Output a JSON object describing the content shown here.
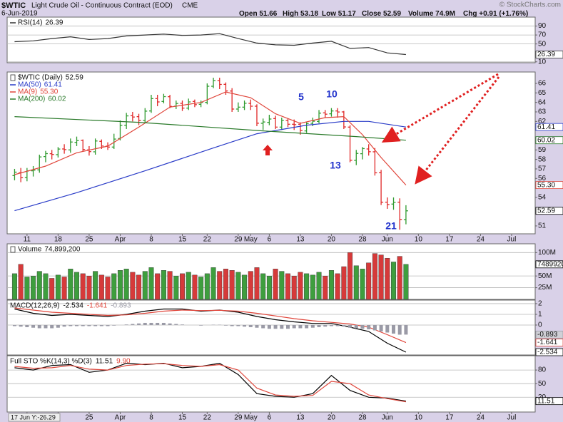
{
  "header": {
    "symbol": "$WTIC",
    "name": "Light Crude Oil - Continuous Contract (EOD)",
    "exchange": "CME",
    "date": "6-Jun-2019",
    "quote": [
      {
        "label": "Open",
        "value": "51.66"
      },
      {
        "label": "High",
        "value": "53.18"
      },
      {
        "label": "Low",
        "value": "51.17"
      },
      {
        "label": "Close",
        "value": "52.59"
      },
      {
        "label": "Volume",
        "value": "74.9M"
      },
      {
        "label": "Chg",
        "value": "+0.91 (+1.76%)"
      }
    ],
    "credit": "© StockCharts.com"
  },
  "cursor_info": "17 Jun Y:-26.29",
  "chart_data": {
    "type": "stock",
    "xlim": [
      -1.2,
      83.8
    ],
    "xticks": [
      {
        "value": 2,
        "label": "11"
      },
      {
        "value": 7,
        "label": "18"
      },
      {
        "value": 12,
        "label": "25"
      },
      {
        "value": 17,
        "label": "Apr"
      },
      {
        "value": 22,
        "label": "8"
      },
      {
        "value": 27,
        "label": "15"
      },
      {
        "value": 31,
        "label": "22"
      },
      {
        "value": 36,
        "label": "29"
      },
      {
        "value": 38,
        "label": "May"
      },
      {
        "value": 41,
        "label": "6"
      },
      {
        "value": 46,
        "label": "13"
      },
      {
        "value": 51,
        "label": "20"
      },
      {
        "value": 56,
        "label": "28"
      },
      {
        "value": 60,
        "label": "Jun"
      },
      {
        "value": 65,
        "label": "10"
      },
      {
        "value": 70,
        "label": "17"
      },
      {
        "value": 75,
        "label": "24"
      },
      {
        "value": 80,
        "label": "Jul"
      }
    ],
    "panels": [
      {
        "type": "line",
        "ylim": [
          8,
          110
        ],
        "yticks": [
          90,
          70,
          50,
          10
        ],
        "grid": true,
        "series": [
          {
            "name": "RSI(14)",
            "color": "#333333",
            "x": [
              0,
              3,
              6,
              9,
              12,
              15,
              18,
              21,
              24,
              27,
              30,
              33,
              36,
              39,
              42,
              45,
              48,
              51,
              54,
              57,
              60,
              63
            ],
            "values": [
              55,
              57,
              62,
              66,
              60,
              62,
              68,
              70,
              72,
              69,
              70,
              73,
              62,
              52,
              48,
              47,
              52,
              56,
              40,
              42,
              30,
              26.39
            ],
            "last": 26.39
          }
        ]
      },
      {
        "type": "ohlc",
        "ylim": [
          50.17,
          67.2
        ],
        "yticks": [
          51,
          54,
          56,
          57,
          58,
          59,
          62,
          63,
          64,
          65,
          66
        ],
        "grid": false,
        "annotations": [
          "5",
          "10",
          "13",
          "21"
        ],
        "series": [
          {
            "name": "$WTIC (Daily)",
            "type": "ohlc",
            "color_up": "#2f9a2f",
            "color_down": "#e02828",
            "open": [
              56.3,
              56.6,
              56.1,
              56.8,
              56.9,
              58.3,
              58.6,
              58.5,
              59.1,
              59.0,
              59.8,
              60.0,
              59.0,
              58.8,
              59.9,
              59.4,
              59.3,
              60.2,
              61.6,
              62.6,
              62.5,
              62.1,
              63.1,
              64.4,
              64.1,
              64.6,
              63.6,
              63.9,
              63.4,
              64.1,
              63.8,
              64.0,
              65.7,
              66.3,
              65.9,
              65.2,
              63.3,
              63.5,
              63.9,
              63.6,
              61.8,
              61.9,
              62.3,
              61.4,
              62.1,
              61.7,
              61.7,
              61.0,
              61.8,
              62.0,
              62.9,
              62.8,
              63.1,
              63.0,
              61.4,
              57.9,
              58.6,
              59.1,
              58.8,
              56.6,
              53.5,
              53.3,
              53.5,
              51.66
            ],
            "high": [
              57.0,
              57.1,
              57.1,
              57.3,
              58.5,
              58.9,
              59.0,
              59.3,
              59.6,
              60.2,
              60.4,
              60.1,
              59.4,
              60.2,
              60.1,
              59.8,
              60.7,
              62.1,
              62.9,
              63.0,
              62.8,
              63.4,
              64.8,
              64.8,
              64.9,
              64.8,
              64.2,
              64.2,
              64.4,
              64.3,
              64.2,
              66.0,
              66.6,
              66.6,
              66.1,
              65.5,
              64.0,
              64.2,
              64.3,
              63.8,
              62.3,
              62.7,
              62.6,
              62.4,
              62.3,
              62.2,
              61.9,
              61.9,
              62.4,
              63.2,
              63.2,
              63.4,
              63.4,
              63.1,
              61.6,
              59.0,
              59.3,
              59.6,
              59.2,
              56.9,
              54.0,
              54.0,
              53.9,
              53.18
            ],
            "low": [
              55.8,
              55.6,
              55.7,
              56.2,
              56.6,
              57.7,
              58.0,
              58.2,
              58.6,
              58.7,
              59.4,
              58.8,
              58.4,
              58.5,
              59.1,
              59.0,
              59.1,
              60.0,
              61.2,
              62.0,
              61.6,
              61.9,
              62.9,
              63.6,
              63.9,
              63.4,
              63.3,
              63.1,
              63.2,
              63.5,
              63.5,
              63.8,
              65.5,
              65.4,
              64.8,
              63.0,
              63.0,
              63.2,
              63.2,
              61.5,
              61.1,
              61.6,
              61.2,
              61.1,
              61.4,
              61.1,
              60.6,
              60.8,
              61.5,
              61.8,
              62.4,
              62.5,
              62.4,
              61.2,
              57.7,
              57.4,
              58.0,
              58.4,
              56.3,
              53.2,
              52.8,
              52.7,
              50.6,
              51.17
            ],
            "close": [
              56.66,
              56.07,
              56.79,
              56.87,
              58.26,
              58.61,
              58.52,
              59.09,
              59.03,
              59.83,
              59.98,
              59.04,
              58.82,
              59.94,
              59.41,
              59.3,
              60.14,
              61.59,
              62.58,
              62.46,
              62.1,
              63.08,
              64.4,
              64.05,
              64.61,
              63.58,
              63.89,
              63.4,
              64.05,
              63.76,
              64.0,
              65.7,
              66.3,
              65.89,
              65.21,
              63.3,
              63.5,
              63.91,
              63.6,
              61.81,
              61.94,
              62.25,
              61.4,
              62.12,
              61.7,
              61.66,
              61.04,
              61.78,
              62.02,
              62.87,
              62.76,
              63.1,
              62.99,
              61.42,
              57.91,
              58.63,
              59.14,
              58.81,
              56.59,
              53.5,
              53.25,
              53.48,
              51.68,
              52.59
            ],
            "last": 52.59
          },
          {
            "name": "MA(50)",
            "type": "line",
            "color": "#2a3cc8",
            "x": [
              0,
              10,
              21,
              32,
              39,
              47,
              53,
              57,
              63
            ],
            "values": [
              52.6,
              54.5,
              56.8,
              59.2,
              60.7,
              61.6,
              62.0,
              62.0,
              61.41
            ],
            "last": 61.41
          },
          {
            "name": "MA(9)",
            "type": "line",
            "color": "#e0453a",
            "x": [
              0,
              5,
              10,
              15,
              20,
              25,
              30,
              34,
              38,
              42,
              46,
              50,
              53,
              56,
              59,
              63
            ],
            "values": [
              56.4,
              57.3,
              58.7,
              59.4,
              61.4,
              63.5,
              64.0,
              65.1,
              64.5,
              62.8,
              61.8,
              62.4,
              62.5,
              60.6,
              58.2,
              55.3
            ],
            "last": {
              "value": 55.3,
              "label": "55.30"
            }
          },
          {
            "name": "MA(200)",
            "type": "line",
            "color": "#2a7a2a",
            "x": [
              0,
              20,
              40,
              55,
              63
            ],
            "values": [
              62.5,
              61.9,
              61.0,
              60.4,
              60.02
            ],
            "last": 60.02
          }
        ]
      },
      {
        "type": "bar",
        "ylim": [
          0,
          118750000
        ],
        "yticks": [
          {
            "value": 100000000,
            "label": "100M"
          },
          {
            "value": 50000000,
            "label": "50M"
          },
          {
            "value": 25000000,
            "label": "25M"
          }
        ],
        "grid": true,
        "series": [
          {
            "name": "Volume",
            "color_up": "#3e9e3e",
            "color_down": "#d63a3a",
            "values": [
              55000000,
              75000000,
              48000000,
              50000000,
              60000000,
              55000000,
              45000000,
              52000000,
              48000000,
              65000000,
              58000000,
              55000000,
              50000000,
              60000000,
              52000000,
              48000000,
              55000000,
              62000000,
              65000000,
              58000000,
              52000000,
              60000000,
              68000000,
              55000000,
              62000000,
              60000000,
              50000000,
              55000000,
              58000000,
              52000000,
              48000000,
              55000000,
              68000000,
              60000000,
              65000000,
              62000000,
              58000000,
              52000000,
              60000000,
              68000000,
              55000000,
              50000000,
              65000000,
              60000000,
              55000000,
              50000000,
              58000000,
              55000000,
              52000000,
              58000000,
              50000000,
              62000000,
              55000000,
              70000000,
              100000000,
              72000000,
              65000000,
              78000000,
              98000000,
              95000000,
              88000000,
              80000000,
              92000000,
              74899200
            ],
            "last": {
              "value": 74899200,
              "label": "74,899,200"
            }
          }
        ]
      },
      {
        "type": "line",
        "label": "MACD(12,26,9)",
        "ylim": [
          -2.8,
          2.33
        ],
        "yticks": [
          2,
          1,
          0
        ],
        "grid": true,
        "series": [
          {
            "type": "line",
            "color": "#000000",
            "x": [
              0,
              3,
              6,
              9,
              12,
              15,
              18,
              21,
              24,
              27,
              30,
              33,
              36,
              39,
              42,
              45,
              48,
              51,
              54,
              57,
              60,
              63
            ],
            "values": [
              1.5,
              1.1,
              0.9,
              1.0,
              0.9,
              0.8,
              1.0,
              1.3,
              1.5,
              1.5,
              1.3,
              1.4,
              1.2,
              0.8,
              0.5,
              0.3,
              0.15,
              0.15,
              -0.2,
              -0.6,
              -1.7,
              -2.534
            ],
            "last": -2.534
          },
          {
            "type": "line",
            "color": "#e0453a",
            "x": [
              0,
              3,
              6,
              9,
              12,
              15,
              18,
              21,
              24,
              27,
              30,
              33,
              36,
              39,
              42,
              45,
              48,
              51,
              54,
              57,
              60,
              63
            ],
            "values": [
              1.6,
              1.4,
              1.2,
              1.1,
              1.0,
              0.9,
              0.95,
              1.1,
              1.3,
              1.4,
              1.35,
              1.38,
              1.3,
              1.1,
              0.85,
              0.6,
              0.4,
              0.25,
              0.1,
              -0.2,
              -0.9,
              -1.641
            ],
            "last": -1.641
          },
          {
            "type": "histogram",
            "color": "#9a9aa6",
            "values": [
              -0.1,
              -0.15,
              -0.2,
              -0.25,
              -0.3,
              -0.3,
              -0.3,
              -0.25,
              -0.15,
              -0.1,
              -0.1,
              -0.1,
              -0.1,
              -0.1,
              -0.1,
              -0.1,
              -0.05,
              0,
              0.05,
              0.1,
              0.15,
              0.2,
              0.2,
              0.2,
              0.2,
              0.15,
              0.1,
              0.05,
              0,
              0,
              -0.05,
              0,
              0.03,
              0.03,
              -0.05,
              -0.1,
              -0.1,
              -0.15,
              -0.2,
              -0.25,
              -0.3,
              -0.35,
              -0.35,
              -0.35,
              -0.35,
              -0.3,
              -0.3,
              -0.3,
              -0.25,
              -0.2,
              -0.15,
              -0.1,
              -0.1,
              -0.15,
              -0.25,
              -0.3,
              -0.35,
              -0.4,
              -0.5,
              -0.6,
              -0.7,
              -0.8,
              -0.9,
              -0.893
            ],
            "last": -0.893
          }
        ]
      },
      {
        "type": "line",
        "label": "Full STO %K(14,3) %D(3)",
        "ylim": [
          -12.6,
          111.6
        ],
        "yticks": [
          80,
          50,
          20
        ],
        "grid": true,
        "series": [
          {
            "type": "line",
            "color": "#000000",
            "x": [
              0,
              3,
              6,
              9,
              12,
              15,
              18,
              21,
              24,
              27,
              30,
              33,
              36,
              39,
              42,
              45,
              48,
              51,
              54,
              57,
              60,
              63
            ],
            "values": [
              85,
              80,
              90,
              92,
              75,
              80,
              95,
              92,
              95,
              85,
              88,
              95,
              70,
              28,
              22,
              20,
              28,
              68,
              35,
              20,
              18,
              11.51
            ],
            "last": 11.51
          },
          {
            "type": "line",
            "color": "#e0453a",
            "x": [
              0,
              3,
              6,
              9,
              12,
              15,
              18,
              21,
              24,
              27,
              30,
              33,
              36,
              39,
              42,
              45,
              48,
              51,
              54,
              57,
              60,
              63
            ],
            "values": [
              88,
              84,
              85,
              90,
              82,
              80,
              90,
              93,
              94,
              90,
              88,
              92,
              80,
              40,
              25,
              22,
              24,
              55,
              50,
              25,
              17,
              9.9
            ],
            "last": {
              "value": 9.9,
              "label": "9.90"
            }
          }
        ]
      }
    ]
  }
}
